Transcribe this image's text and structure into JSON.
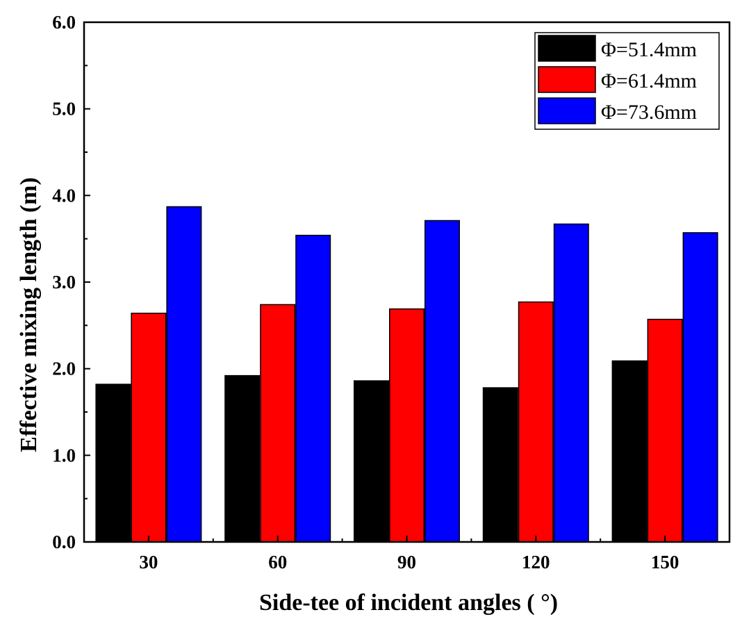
{
  "chart_data": {
    "type": "bar",
    "title": "",
    "xlabel": "Side-tee of incident angles ( °)",
    "ylabel": "Effective mixing length (m)",
    "categories": [
      "30",
      "60",
      "90",
      "120",
      "150"
    ],
    "ylim": [
      0,
      6
    ],
    "yticks": [
      "0.0",
      "1.0",
      "2.0",
      "3.0",
      "4.0",
      "5.0",
      "6.0"
    ],
    "grid": false,
    "legend_position": "top-right",
    "series": [
      {
        "name": "Φ=51.4mm",
        "color": "#000000",
        "values": [
          1.82,
          1.92,
          1.86,
          1.78,
          2.09
        ]
      },
      {
        "name": "Φ=61.4mm",
        "color": "#ff0000",
        "values": [
          2.64,
          2.74,
          2.69,
          2.77,
          2.57
        ]
      },
      {
        "name": "Φ=73.6mm",
        "color": "#0000ff",
        "values": [
          3.87,
          3.54,
          3.71,
          3.67,
          3.57
        ]
      }
    ]
  }
}
